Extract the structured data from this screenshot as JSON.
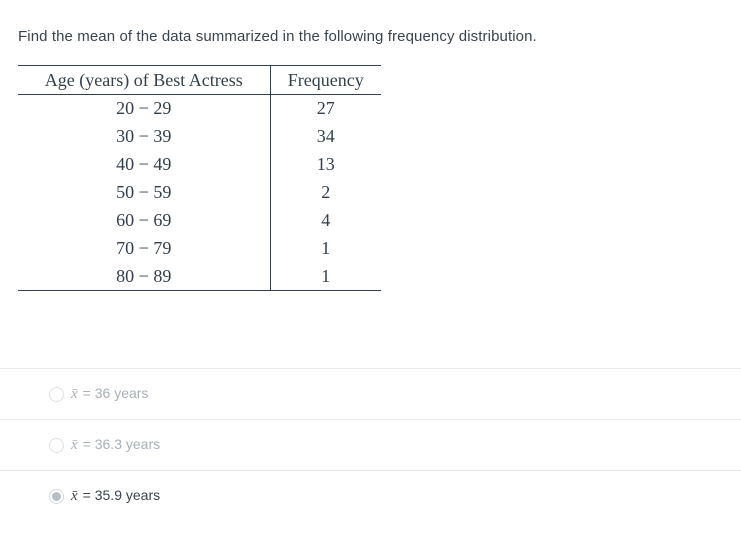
{
  "question": "Find the mean of the data summarized in the following frequency distribution.",
  "table": {
    "headers": [
      "Age (years) of Best Actress",
      "Frequency"
    ],
    "rows": [
      {
        "range": "20 − 29",
        "frequency": "27"
      },
      {
        "range": "30 − 39",
        "frequency": "34"
      },
      {
        "range": "40 − 49",
        "frequency": "13"
      },
      {
        "range": "50 − 59",
        "frequency": "2"
      },
      {
        "range": "60 − 69",
        "frequency": "4"
      },
      {
        "range": "70 − 79",
        "frequency": "1"
      },
      {
        "range": "80 − 89",
        "frequency": "1"
      }
    ]
  },
  "options": [
    {
      "symbol": "x̄",
      "label": "= 36 years",
      "selected": false
    },
    {
      "symbol": "x̄",
      "label": "= 36.3 years",
      "selected": false
    },
    {
      "symbol": "x̄",
      "label": "= 35.9 years",
      "selected": true
    }
  ],
  "colors": {
    "question_text": "#39444e",
    "table_text": "#33404c",
    "option_text_muted": "#a7b0b8",
    "option_text_selected": "#3a444e",
    "divider": "#e8eaec",
    "radio_border": "#dde1e4",
    "radio_dot": "#b7bec4"
  }
}
